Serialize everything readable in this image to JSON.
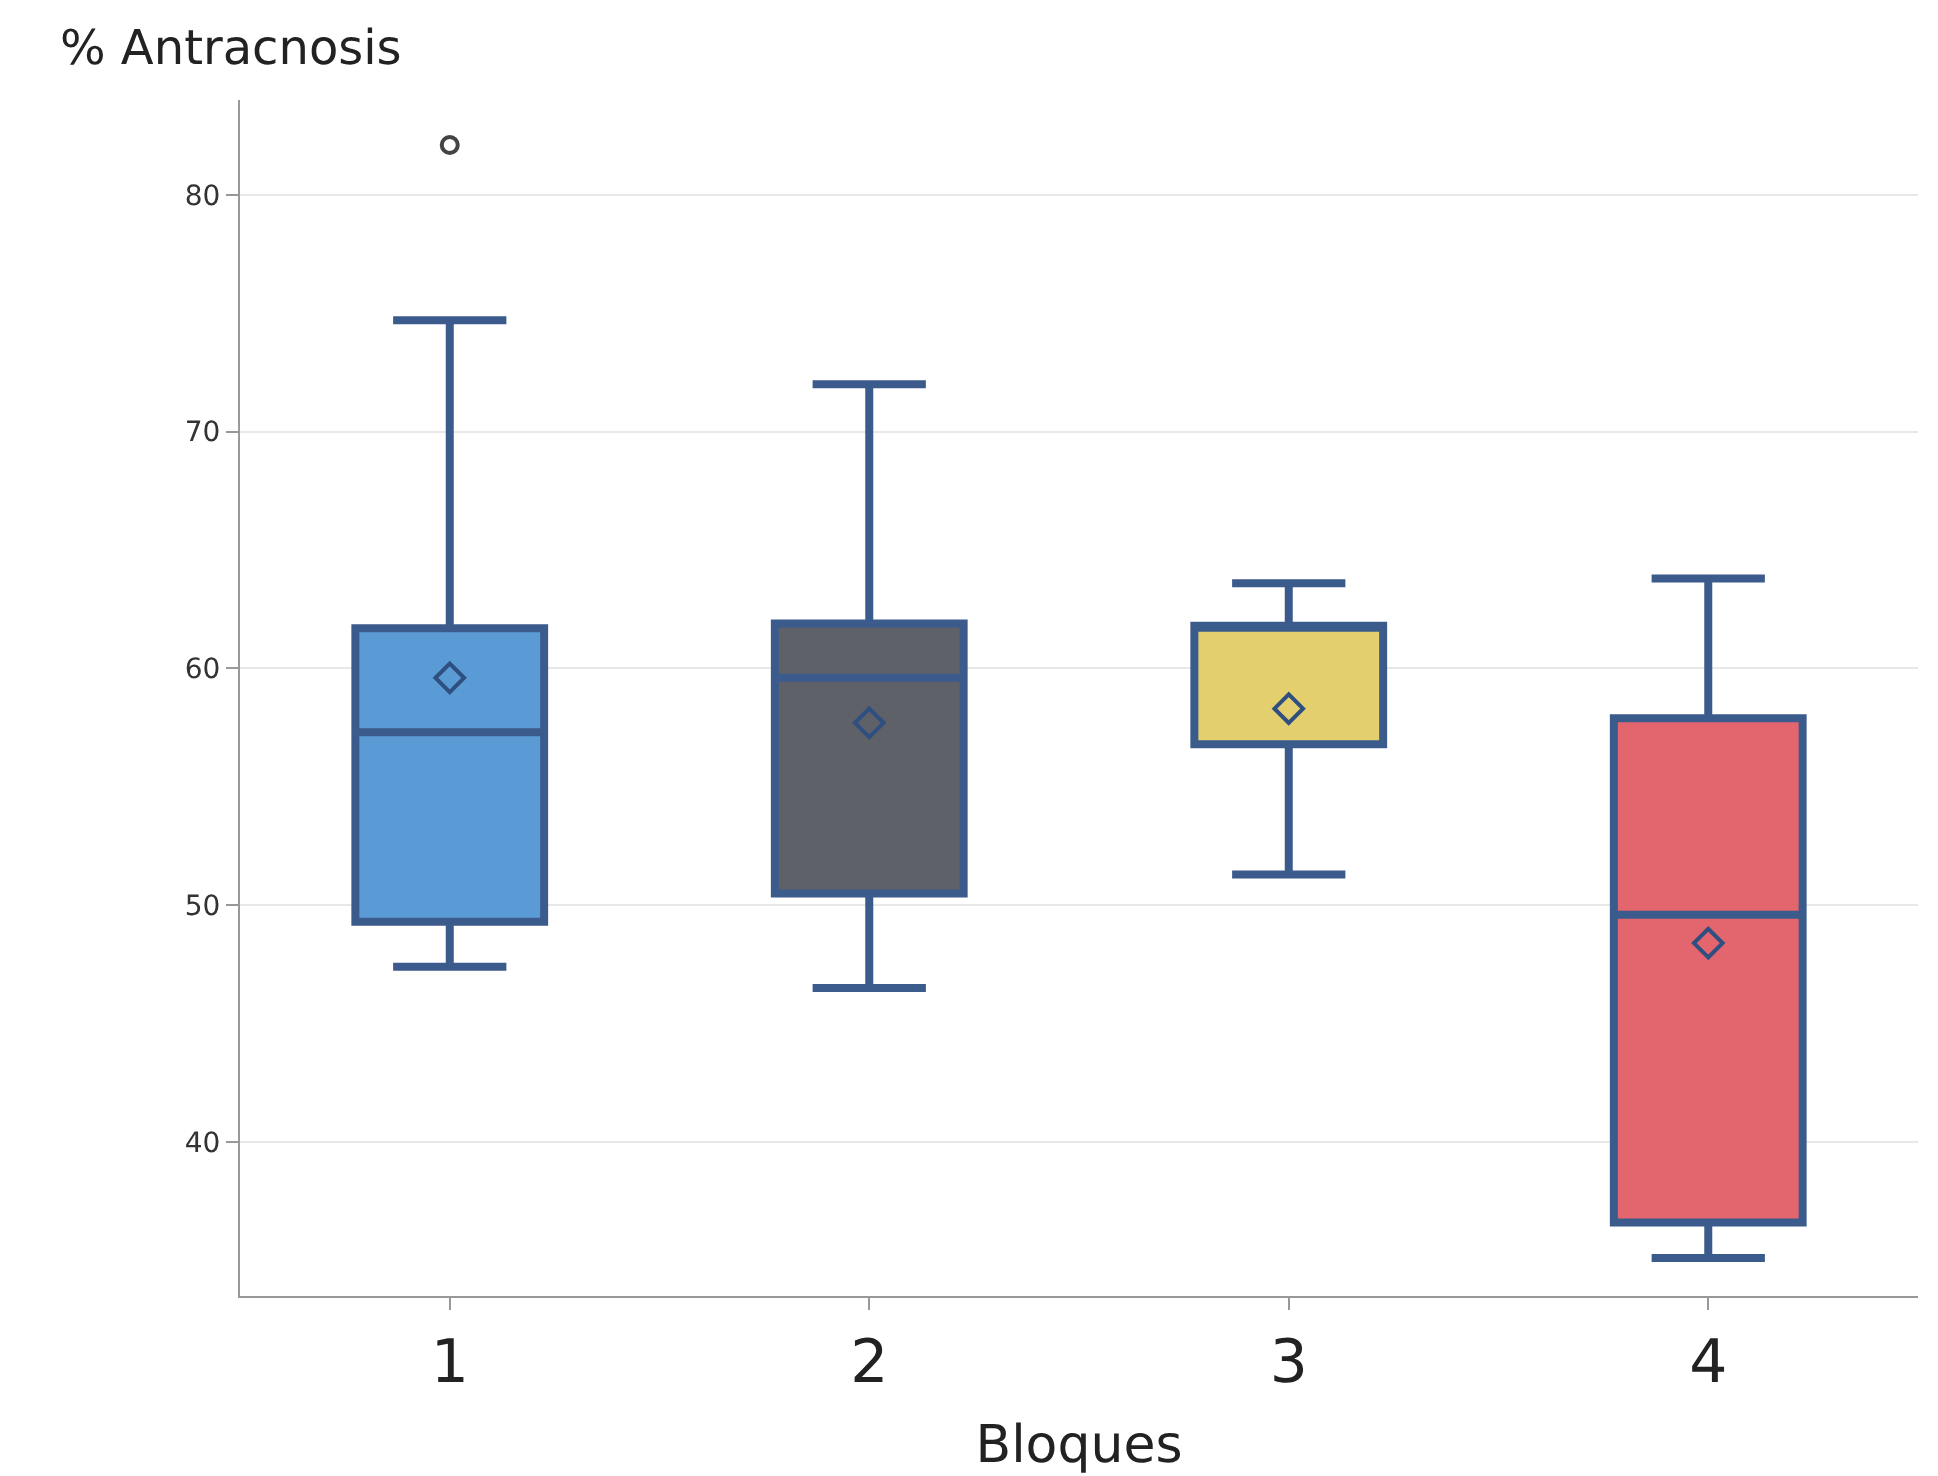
{
  "chart_data": {
    "type": "box",
    "ylabel": "% Antracnosis",
    "xlabel": "Bloques",
    "categories": [
      "1",
      "2",
      "3",
      "4"
    ],
    "colors": [
      "#5b9bd5",
      "#5f6169",
      "#e3cf6e",
      "#e3656d"
    ],
    "boxes": [
      {
        "low": 47.4,
        "q1": 49.3,
        "median": 57.3,
        "q3": 61.7,
        "high": 74.7,
        "mean": 59.6,
        "outliers": [
          82.1
        ]
      },
      {
        "low": 46.5,
        "q1": 50.5,
        "median": 59.6,
        "q3": 61.9,
        "high": 72.0,
        "mean": 57.7
      },
      {
        "low": 51.3,
        "q1": 56.8,
        "median": 61.8,
        "q3": 61.8,
        "high": 63.6,
        "mean": 58.3
      },
      {
        "low": 35.1,
        "q1": 36.6,
        "median": 49.6,
        "q3": 57.9,
        "high": 63.8,
        "mean": 48.4
      }
    ],
    "ylim": [
      33.5,
      84
    ],
    "yticks": [
      40,
      50,
      60,
      70,
      80
    ],
    "grid": "y"
  }
}
